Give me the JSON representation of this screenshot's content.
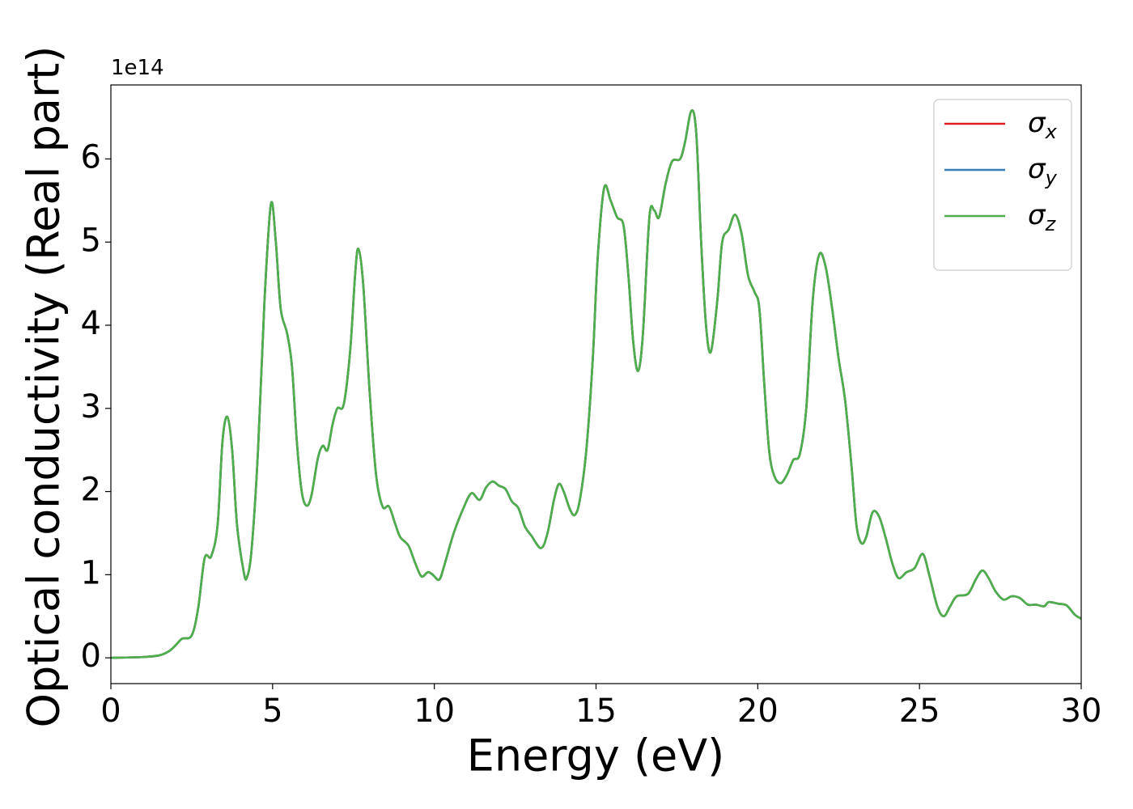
{
  "chart_data": {
    "type": "line",
    "x_label": "Energy (eV)",
    "y_label": "Optical conductivity (Real part)",
    "offset_label": "1e14",
    "xlim": [
      0,
      30
    ],
    "ylim": [
      -0.31,
      6.89
    ],
    "xticks": [
      0,
      5,
      10,
      15,
      20,
      25,
      30
    ],
    "yticks": [
      0,
      1,
      2,
      3,
      4,
      5,
      6
    ],
    "legend": "upper right",
    "x": [
      0,
      1,
      1.5,
      1.8,
      2.0,
      2.2,
      2.5,
      2.7,
      2.9,
      3.1,
      3.3,
      3.45,
      3.6,
      3.75,
      3.9,
      4.1,
      4.2,
      4.35,
      4.55,
      4.75,
      4.95,
      5.1,
      5.25,
      5.45,
      5.6,
      5.75,
      5.9,
      6.05,
      6.2,
      6.4,
      6.55,
      6.7,
      6.85,
      7.0,
      7.2,
      7.4,
      7.55,
      7.65,
      7.8,
      8.0,
      8.2,
      8.4,
      8.6,
      8.8,
      8.95,
      9.2,
      9.4,
      9.6,
      9.8,
      9.95,
      10.15,
      10.3,
      10.6,
      10.9,
      11.15,
      11.4,
      11.6,
      11.8,
      12.0,
      12.2,
      12.4,
      12.6,
      12.8,
      13.0,
      13.3,
      13.5,
      13.7,
      13.85,
      14.0,
      14.2,
      14.35,
      14.5,
      14.7,
      14.9,
      15.05,
      15.25,
      15.45,
      15.65,
      15.85,
      16.0,
      16.15,
      16.3,
      16.45,
      16.65,
      16.8,
      16.95,
      17.15,
      17.35,
      17.6,
      17.75,
      17.95,
      18.1,
      18.25,
      18.4,
      18.55,
      18.75,
      18.9,
      19.1,
      19.3,
      19.5,
      19.7,
      19.9,
      20.05,
      20.2,
      20.35,
      20.5,
      20.7,
      20.9,
      21.1,
      21.3,
      21.5,
      21.7,
      21.9,
      22.1,
      22.3,
      22.5,
      22.7,
      22.9,
      23.05,
      23.2,
      23.35,
      23.55,
      23.75,
      23.95,
      24.15,
      24.35,
      24.6,
      24.85,
      25.1,
      25.3,
      25.55,
      25.75,
      25.95,
      26.15,
      26.5,
      26.75,
      26.95,
      27.15,
      27.35,
      27.6,
      27.85,
      28.1,
      28.35,
      28.6,
      28.85,
      29.0,
      29.3,
      29.55,
      29.8,
      30
    ],
    "series": [
      {
        "name": "σx",
        "color": "#e41a1c",
        "values": [
          0,
          0.01,
          0.03,
          0.08,
          0.15,
          0.23,
          0.27,
          0.6,
          1.2,
          1.22,
          1.6,
          2.6,
          2.9,
          2.5,
          1.6,
          1.05,
          0.96,
          1.3,
          2.5,
          4.3,
          5.46,
          5.0,
          4.2,
          3.9,
          3.5,
          2.6,
          2.0,
          1.83,
          1.95,
          2.4,
          2.55,
          2.5,
          2.8,
          3.0,
          3.05,
          3.7,
          4.6,
          4.92,
          4.5,
          3.2,
          2.2,
          1.82,
          1.82,
          1.6,
          1.45,
          1.35,
          1.15,
          0.98,
          1.03,
          1.0,
          0.94,
          1.1,
          1.5,
          1.8,
          1.98,
          1.9,
          2.05,
          2.12,
          2.07,
          2.03,
          1.88,
          1.8,
          1.58,
          1.47,
          1.32,
          1.5,
          1.9,
          2.09,
          2.0,
          1.78,
          1.72,
          1.9,
          2.5,
          3.6,
          4.8,
          5.65,
          5.5,
          5.3,
          5.2,
          4.6,
          3.8,
          3.45,
          3.9,
          5.3,
          5.38,
          5.3,
          5.7,
          5.97,
          6.0,
          6.2,
          6.58,
          6.3,
          5.0,
          4.0,
          3.68,
          4.3,
          5.0,
          5.15,
          5.33,
          5.1,
          4.6,
          4.4,
          4.2,
          3.3,
          2.5,
          2.2,
          2.1,
          2.2,
          2.38,
          2.45,
          3.0,
          4.3,
          4.85,
          4.7,
          4.2,
          3.6,
          3.1,
          2.3,
          1.6,
          1.38,
          1.45,
          1.75,
          1.7,
          1.45,
          1.15,
          0.96,
          1.03,
          1.08,
          1.25,
          1.0,
          0.62,
          0.5,
          0.62,
          0.74,
          0.77,
          0.95,
          1.05,
          0.95,
          0.8,
          0.7,
          0.74,
          0.72,
          0.64,
          0.64,
          0.62,
          0.67,
          0.65,
          0.63,
          0.52,
          0.47
        ]
      },
      {
        "name": "σy",
        "color": "#377eb8",
        "values": [
          0,
          0.01,
          0.03,
          0.08,
          0.15,
          0.23,
          0.27,
          0.6,
          1.2,
          1.22,
          1.6,
          2.6,
          2.9,
          2.5,
          1.6,
          1.05,
          0.96,
          1.3,
          2.5,
          4.3,
          5.46,
          5.0,
          4.2,
          3.9,
          3.5,
          2.6,
          2.0,
          1.83,
          1.95,
          2.4,
          2.55,
          2.5,
          2.8,
          3.0,
          3.05,
          3.7,
          4.6,
          4.92,
          4.5,
          3.2,
          2.2,
          1.82,
          1.82,
          1.6,
          1.45,
          1.35,
          1.15,
          0.98,
          1.03,
          1.0,
          0.94,
          1.1,
          1.5,
          1.8,
          1.98,
          1.9,
          2.05,
          2.12,
          2.07,
          2.03,
          1.88,
          1.8,
          1.58,
          1.47,
          1.32,
          1.5,
          1.9,
          2.09,
          2.0,
          1.78,
          1.72,
          1.9,
          2.5,
          3.6,
          4.8,
          5.65,
          5.5,
          5.3,
          5.2,
          4.6,
          3.8,
          3.45,
          3.9,
          5.3,
          5.38,
          5.3,
          5.7,
          5.97,
          6.0,
          6.2,
          6.58,
          6.3,
          5.0,
          4.0,
          3.68,
          4.3,
          5.0,
          5.15,
          5.33,
          5.1,
          4.6,
          4.4,
          4.2,
          3.3,
          2.5,
          2.2,
          2.1,
          2.2,
          2.38,
          2.45,
          3.0,
          4.3,
          4.85,
          4.7,
          4.2,
          3.6,
          3.1,
          2.3,
          1.6,
          1.38,
          1.45,
          1.75,
          1.7,
          1.45,
          1.15,
          0.96,
          1.03,
          1.08,
          1.25,
          1.0,
          0.62,
          0.5,
          0.62,
          0.74,
          0.77,
          0.95,
          1.05,
          0.95,
          0.8,
          0.7,
          0.74,
          0.72,
          0.64,
          0.64,
          0.62,
          0.67,
          0.65,
          0.63,
          0.52,
          0.47
        ]
      },
      {
        "name": "σz",
        "color": "#4daf4a",
        "values": [
          0,
          0.01,
          0.03,
          0.08,
          0.15,
          0.23,
          0.27,
          0.6,
          1.2,
          1.22,
          1.6,
          2.6,
          2.9,
          2.5,
          1.6,
          1.05,
          0.96,
          1.3,
          2.5,
          4.3,
          5.46,
          5.0,
          4.2,
          3.9,
          3.5,
          2.6,
          2.0,
          1.83,
          1.95,
          2.4,
          2.55,
          2.5,
          2.8,
          3.0,
          3.05,
          3.7,
          4.6,
          4.92,
          4.5,
          3.2,
          2.2,
          1.82,
          1.82,
          1.6,
          1.45,
          1.35,
          1.15,
          0.98,
          1.03,
          1.0,
          0.94,
          1.1,
          1.5,
          1.8,
          1.98,
          1.9,
          2.05,
          2.12,
          2.07,
          2.03,
          1.88,
          1.8,
          1.58,
          1.47,
          1.32,
          1.5,
          1.9,
          2.09,
          2.0,
          1.78,
          1.72,
          1.9,
          2.5,
          3.6,
          4.8,
          5.65,
          5.5,
          5.3,
          5.2,
          4.6,
          3.8,
          3.45,
          3.9,
          5.3,
          5.38,
          5.3,
          5.7,
          5.97,
          6.0,
          6.2,
          6.58,
          6.3,
          5.0,
          4.0,
          3.68,
          4.3,
          5.0,
          5.15,
          5.33,
          5.1,
          4.6,
          4.4,
          4.2,
          3.3,
          2.5,
          2.2,
          2.1,
          2.2,
          2.38,
          2.45,
          3.0,
          4.3,
          4.85,
          4.7,
          4.2,
          3.6,
          3.1,
          2.3,
          1.6,
          1.38,
          1.45,
          1.75,
          1.7,
          1.45,
          1.15,
          0.96,
          1.03,
          1.08,
          1.25,
          1.0,
          0.62,
          0.5,
          0.62,
          0.74,
          0.77,
          0.95,
          1.05,
          0.95,
          0.8,
          0.7,
          0.74,
          0.72,
          0.64,
          0.64,
          0.62,
          0.67,
          0.65,
          0.63,
          0.52,
          0.47
        ]
      }
    ]
  }
}
